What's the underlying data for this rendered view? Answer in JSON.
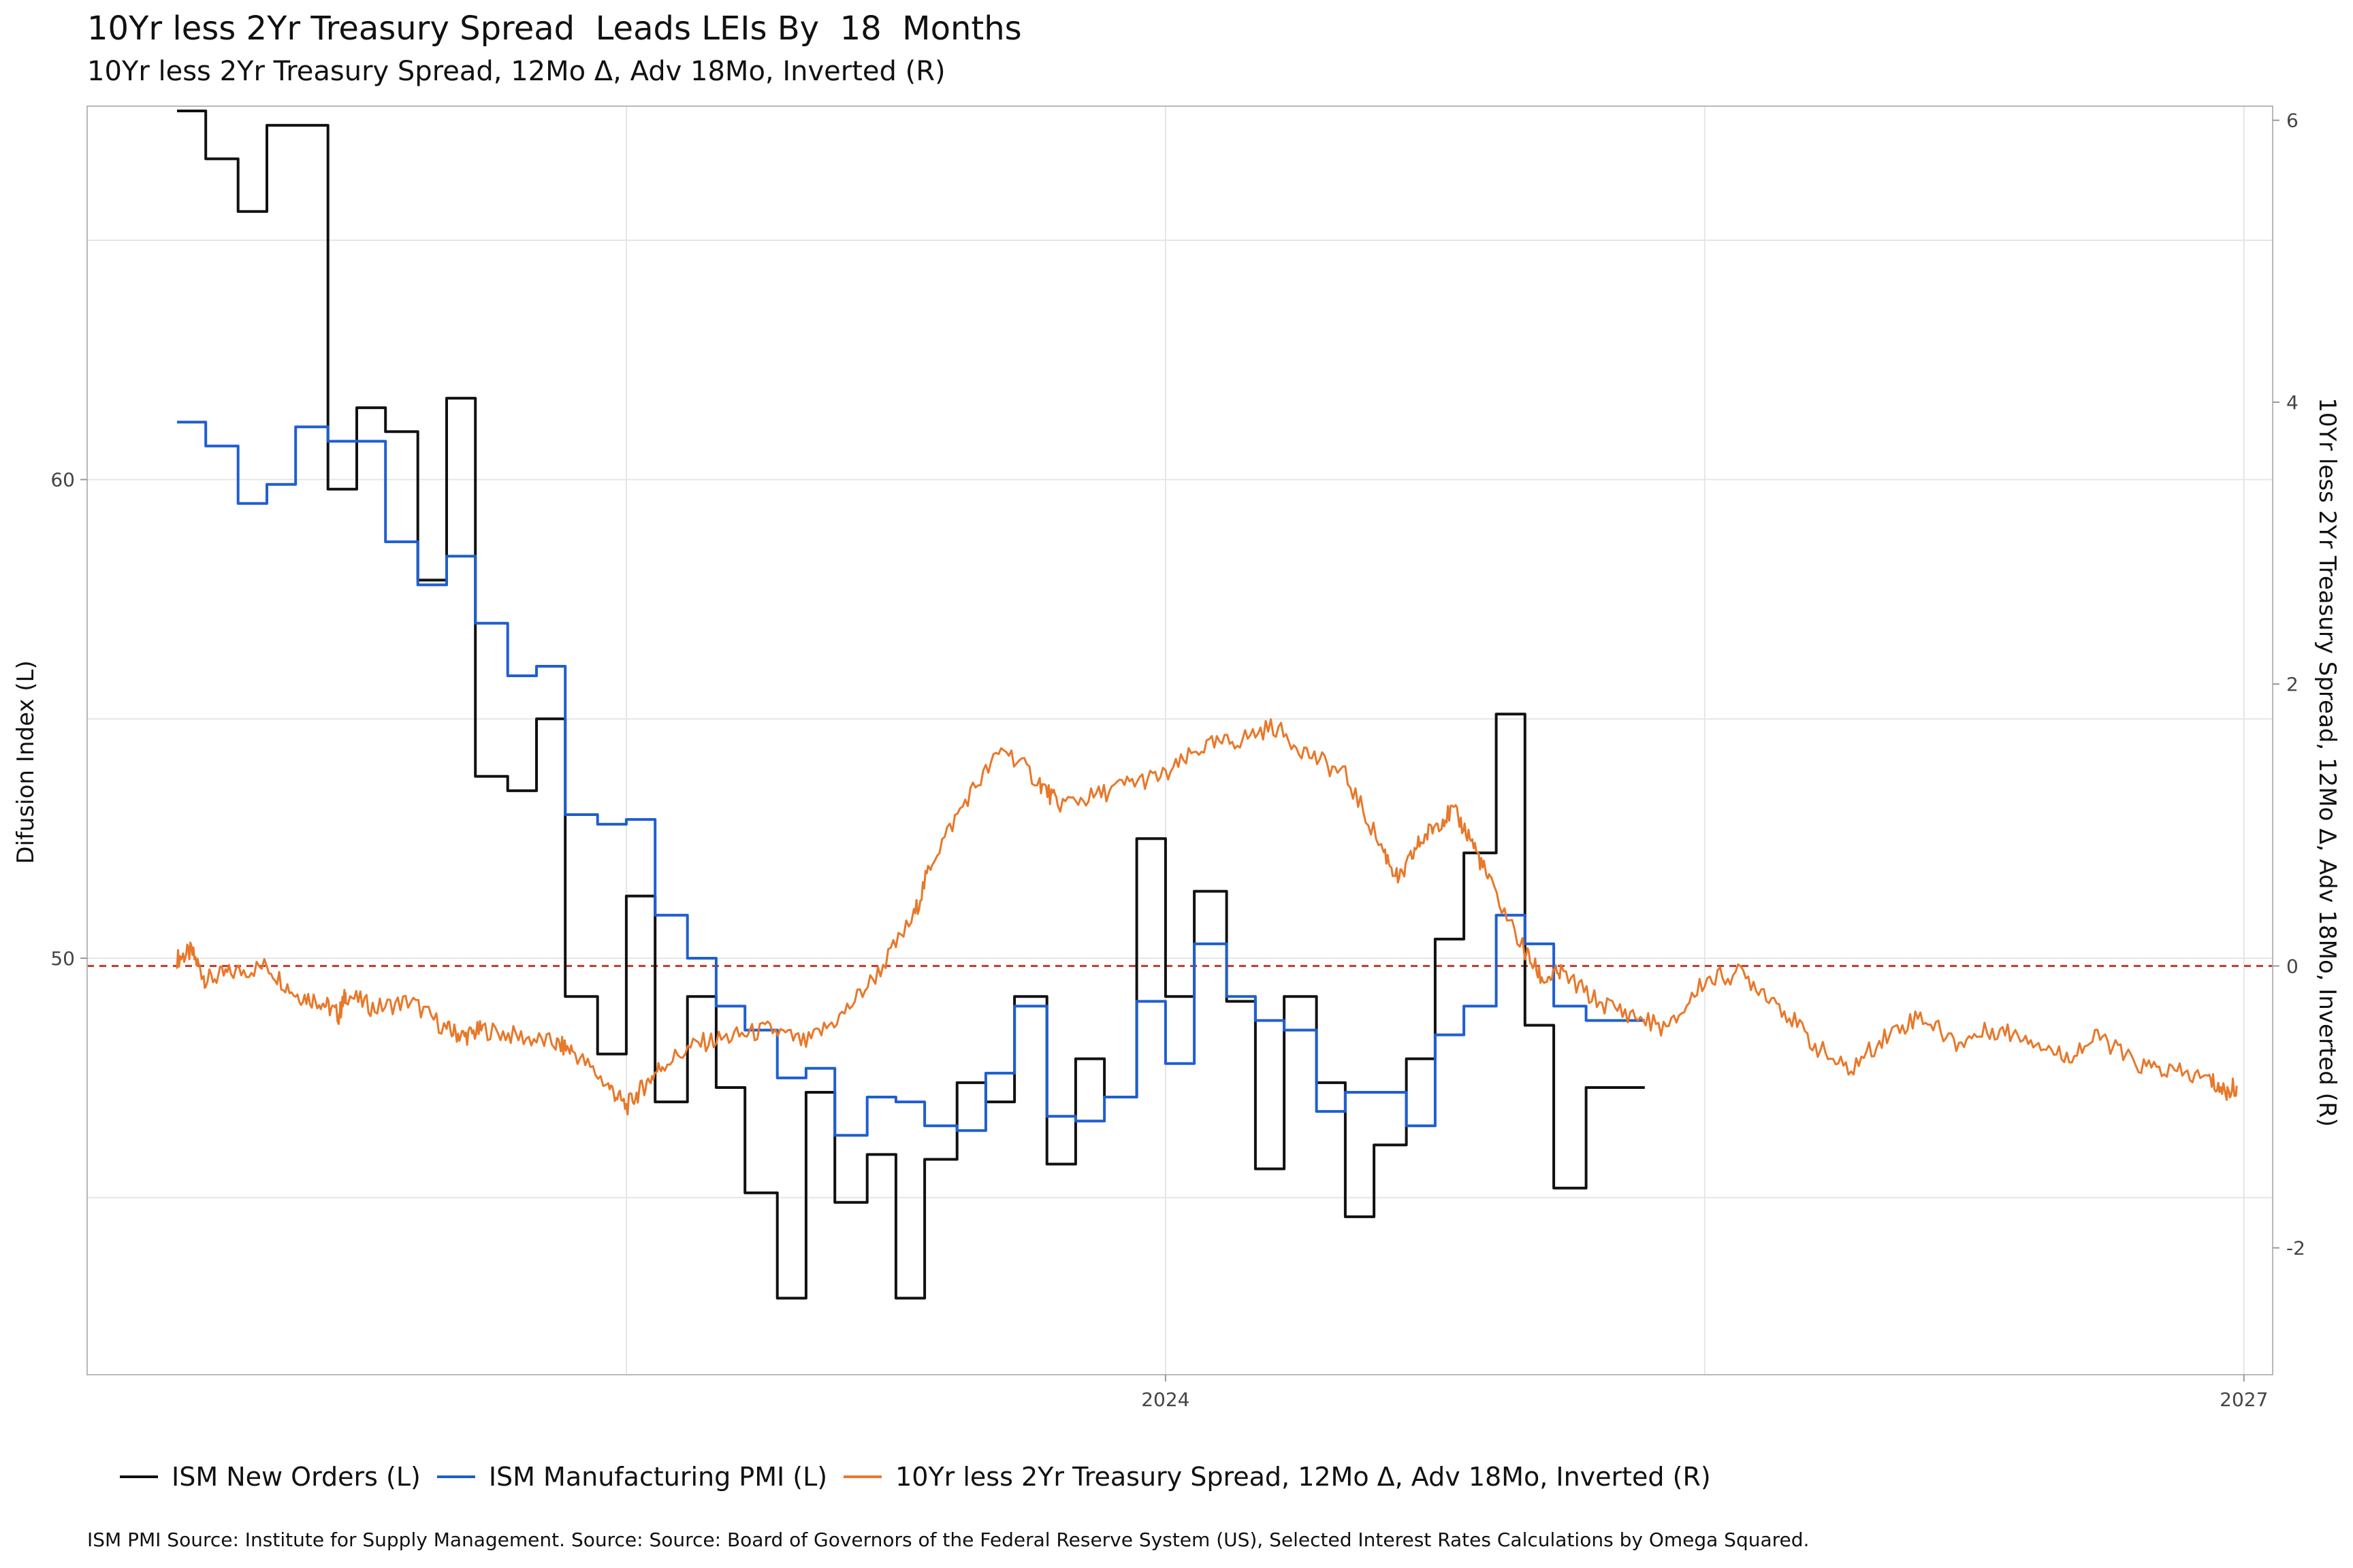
{
  "title": "10Yr less 2Yr Treasury Spread  Leads LEIs By  18  Months",
  "subtitle": "10Yr less 2Yr Treasury Spread, 12Mo Δ, Adv 18Mo, Inverted (R)",
  "source": "ISM PMI Source: Institute for Supply Management. Source: Source: Board of Governors of the Federal Reserve System (US), Selected Interest Rates Calculations by Omega Squared.",
  "chart_data": {
    "type": "line",
    "title": "10Yr less 2Yr Treasury Spread  Leads LEIs By  18  Months",
    "subtitle": "10Yr less 2Yr Treasury Spread, 12Mo Δ, Adv 18Mo, Inverted (R)",
    "ylabel_left": "Difusion Index (L)",
    "ylabel_right": "10Yr less 2Yr Treasury Spread, 12Mo Δ, Adv 18Mo, Inverted (R)",
    "x_ticks": [
      "2024",
      "2027"
    ],
    "x_range": [
      2021.0,
      2027.08
    ],
    "y_left_ticks": [
      50,
      60
    ],
    "y_left_range": [
      41.3,
      67.8
    ],
    "y_right_ticks": [
      -2,
      0,
      2,
      4,
      6
    ],
    "y_right_range": [
      -2.9,
      6.1
    ],
    "reference_line": {
      "axis": "right",
      "value": 0,
      "style": "dashed",
      "color": "#c0392b"
    },
    "grid": true,
    "legend_position": "bottom",
    "series": [
      {
        "name": "ISM New Orders (L)",
        "axis": "left",
        "color": "#111111",
        "step": true,
        "x": [
          2021.25,
          2021.33,
          2021.42,
          2021.5,
          2021.58,
          2021.67,
          2021.75,
          2021.83,
          2021.92,
          2022.0,
          2022.08,
          2022.17,
          2022.25,
          2022.33,
          2022.42,
          2022.5,
          2022.58,
          2022.67,
          2022.75,
          2022.83,
          2022.92,
          2023.0,
          2023.08,
          2023.17,
          2023.25,
          2023.33,
          2023.42,
          2023.5,
          2023.58,
          2023.67,
          2023.75,
          2023.83,
          2023.92,
          2024.0,
          2024.08,
          2024.17,
          2024.25,
          2024.33,
          2024.42,
          2024.5,
          2024.58,
          2024.67,
          2024.75,
          2024.83,
          2024.92,
          2025.0,
          2025.08,
          2025.17,
          2025.25
        ],
        "values": [
          67.7,
          66.7,
          65.6,
          67.4,
          67.4,
          59.8,
          61.5,
          61.0,
          57.9,
          61.7,
          53.8,
          53.5,
          55.0,
          49.2,
          48.0,
          51.3,
          47.0,
          49.2,
          47.3,
          45.1,
          42.9,
          47.2,
          44.9,
          45.9,
          42.9,
          45.8,
          47.4,
          47.0,
          49.2,
          45.7,
          47.9,
          47.1,
          52.5,
          49.2,
          51.4,
          49.1,
          45.6,
          49.2,
          47.4,
          44.6,
          46.1,
          47.9,
          50.4,
          52.2,
          55.1,
          48.6,
          45.2,
          47.3,
          47.3
        ]
      },
      {
        "name": "ISM Manufacturing PMI (L)",
        "axis": "left",
        "color": "#1f5fcf",
        "step": true,
        "x": [
          2021.25,
          2021.33,
          2021.42,
          2021.5,
          2021.58,
          2021.67,
          2021.75,
          2021.83,
          2021.92,
          2022.0,
          2022.08,
          2022.17,
          2022.25,
          2022.33,
          2022.42,
          2022.5,
          2022.58,
          2022.67,
          2022.75,
          2022.83,
          2022.92,
          2023.0,
          2023.08,
          2023.17,
          2023.25,
          2023.33,
          2023.42,
          2023.5,
          2023.58,
          2023.67,
          2023.75,
          2023.83,
          2023.92,
          2024.0,
          2024.08,
          2024.17,
          2024.25,
          2024.33,
          2024.42,
          2024.5,
          2024.58,
          2024.67,
          2024.75,
          2024.83,
          2024.92,
          2025.0,
          2025.08,
          2025.17,
          2025.25
        ],
        "values": [
          61.2,
          60.7,
          59.5,
          59.9,
          61.1,
          60.8,
          60.8,
          58.7,
          57.8,
          58.4,
          57.0,
          55.9,
          56.1,
          53.0,
          52.8,
          52.9,
          50.9,
          50.0,
          49.0,
          48.5,
          47.5,
          47.7,
          46.3,
          47.1,
          47.0,
          46.5,
          46.4,
          47.6,
          49.0,
          46.7,
          46.6,
          47.1,
          49.1,
          47.8,
          50.3,
          49.2,
          48.7,
          48.5,
          46.8,
          47.2,
          47.2,
          46.5,
          48.4,
          49.0,
          50.9,
          50.3,
          49.0,
          48.7,
          48.7
        ]
      },
      {
        "name": "10Yr less 2Yr Treasury Spread, 12Mo Δ, Adv 18Mo, Inverted (R)",
        "axis": "right",
        "color": "#e8782a",
        "step": false,
        "x": [
          2021.25,
          2021.29,
          2021.33,
          2021.4,
          2021.5,
          2021.58,
          2021.65,
          2021.7,
          2021.72,
          2021.8,
          2021.9,
          2022.0,
          2022.05,
          2022.1,
          2022.2,
          2022.3,
          2022.35,
          2022.45,
          2022.5,
          2022.55,
          2022.6,
          2022.7,
          2022.8,
          2022.9,
          2023.0,
          2023.1,
          2023.2,
          2023.3,
          2023.35,
          2023.45,
          2023.55,
          2023.65,
          2023.7,
          2023.8,
          2023.9,
          2024.0,
          2024.1,
          2024.2,
          2024.3,
          2024.4,
          2024.5,
          2024.6,
          2024.65,
          2024.7,
          2024.75,
          2024.8,
          2024.85,
          2024.9,
          2025.0,
          2025.05,
          2025.1,
          2025.2,
          2025.3,
          2025.4,
          2025.5,
          2025.6,
          2025.7,
          2025.8,
          2025.9,
          2026.0,
          2026.1,
          2026.2,
          2026.3,
          2026.4,
          2026.5,
          2026.6,
          2026.7,
          2026.8,
          2026.9,
          2026.95,
          2026.98
        ],
        "values": [
          0.05,
          0.1,
          -0.1,
          -0.05,
          0.0,
          -0.2,
          -0.25,
          -0.35,
          -0.2,
          -0.3,
          -0.25,
          -0.45,
          -0.5,
          -0.45,
          -0.5,
          -0.55,
          -0.6,
          -0.85,
          -1.0,
          -0.85,
          -0.7,
          -0.55,
          -0.5,
          -0.45,
          -0.55,
          -0.35,
          -0.05,
          0.35,
          0.75,
          1.2,
          1.55,
          1.3,
          1.15,
          1.2,
          1.3,
          1.35,
          1.55,
          1.6,
          1.7,
          1.5,
          1.35,
          0.85,
          0.6,
          0.85,
          1.0,
          1.1,
          0.9,
          0.6,
          0.1,
          -0.1,
          -0.05,
          -0.25,
          -0.35,
          -0.45,
          -0.1,
          -0.05,
          -0.25,
          -0.55,
          -0.75,
          -0.5,
          -0.35,
          -0.55,
          -0.45,
          -0.5,
          -0.65,
          -0.5,
          -0.7,
          -0.75,
          -0.8,
          -0.9,
          -0.85
        ]
      }
    ]
  },
  "legend": [
    {
      "label": "ISM New Orders (L)",
      "color": "#111111"
    },
    {
      "label": "ISM Manufacturing PMI (L)",
      "color": "#1f5fcf"
    },
    {
      "label": "10Yr less 2Yr Treasury Spread, 12Mo Δ, Adv 18Mo, Inverted (R)",
      "color": "#e8782a"
    }
  ]
}
